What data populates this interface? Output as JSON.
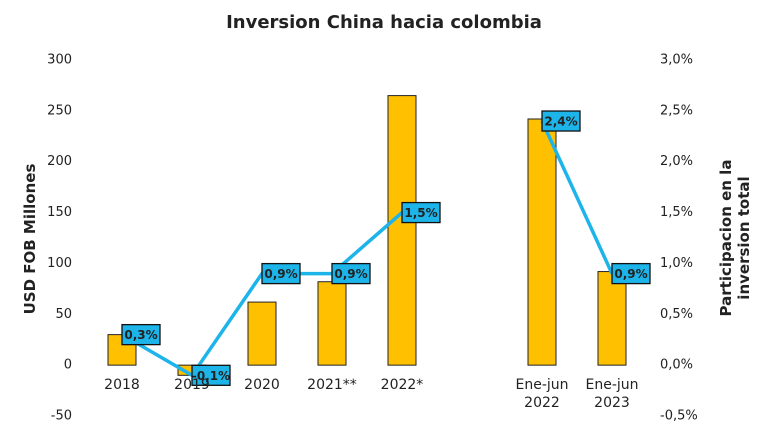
{
  "chart_data": {
    "type": "bar-line",
    "title": "Inversion China hacia colombia",
    "y_label": "USD FOB Millones",
    "y2_label": "Participacion en la inversion total",
    "categories": [
      "2018",
      "2019",
      "2020",
      "2021**",
      "2022*",
      null,
      "Ene-jun 2022",
      "Ene-jun 2023"
    ],
    "series": [
      {
        "type": "bar",
        "color": "#FFC000",
        "values": [
          30,
          -10,
          62,
          82,
          265,
          null,
          242,
          92
        ]
      },
      {
        "type": "line",
        "axis": "y2",
        "color": "#1DB4EA",
        "values": [
          0.3,
          -0.1,
          0.9,
          0.9,
          1.5,
          null,
          2.4,
          0.9
        ],
        "value_labels": [
          "0,3%",
          "-0,1%",
          "0,9%",
          "0,9%",
          "1,5%",
          null,
          "2,4%",
          "0,9%"
        ]
      }
    ],
    "ylim": [
      -50,
      300
    ],
    "yticks": [
      -50,
      0,
      50,
      100,
      150,
      200,
      250,
      300
    ],
    "y2lim": [
      -0.5,
      3.0
    ],
    "y2ticks": [
      {
        "value": -0.5,
        "label": "-0,5%"
      },
      {
        "value": 0,
        "label": "0,0%"
      },
      {
        "value": 0.5,
        "label": "0,5%"
      },
      {
        "value": 1.0,
        "label": "1,0%"
      },
      {
        "value": 1.5,
        "label": "1,5%"
      },
      {
        "value": 2.0,
        "label": "2,0%"
      },
      {
        "value": 2.5,
        "label": "2,5%"
      },
      {
        "value": 3.0,
        "label": "3,0%"
      }
    ]
  }
}
